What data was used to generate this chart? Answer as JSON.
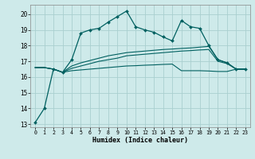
{
  "xlabel": "Humidex (Indice chaleur)",
  "background_color": "#ceeaea",
  "grid_color": "#aacfcf",
  "line_color": "#006060",
  "xlim": [
    -0.5,
    23.5
  ],
  "ylim": [
    12.8,
    20.6
  ],
  "yticks": [
    13,
    14,
    15,
    16,
    17,
    18,
    19,
    20
  ],
  "xticks": [
    0,
    1,
    2,
    3,
    4,
    5,
    6,
    7,
    8,
    9,
    10,
    11,
    12,
    13,
    14,
    15,
    16,
    17,
    18,
    19,
    20,
    21,
    22,
    23
  ],
  "line1_x": [
    0,
    1,
    2,
    3,
    4,
    5,
    6,
    7,
    8,
    9,
    10,
    11,
    12,
    13,
    14,
    15,
    16,
    17,
    18,
    19,
    20,
    21,
    22,
    23
  ],
  "line1_y": [
    13.1,
    14.0,
    16.5,
    16.3,
    17.1,
    18.8,
    19.0,
    19.1,
    19.5,
    19.85,
    20.2,
    19.2,
    19.0,
    18.85,
    18.55,
    18.3,
    19.6,
    19.2,
    19.1,
    18.0,
    17.1,
    16.9,
    16.5,
    16.5
  ],
  "line2_x": [
    0,
    1,
    2,
    3,
    4,
    5,
    6,
    7,
    8,
    9,
    10,
    11,
    12,
    13,
    14,
    15,
    16,
    17,
    18,
    19,
    20,
    21,
    22,
    23
  ],
  "line2_y": [
    16.6,
    16.6,
    16.5,
    16.3,
    16.4,
    16.45,
    16.5,
    16.55,
    16.6,
    16.65,
    16.7,
    16.72,
    16.75,
    16.77,
    16.8,
    16.82,
    16.4,
    16.4,
    16.4,
    16.38,
    16.35,
    16.35,
    16.5,
    16.5
  ],
  "line3_x": [
    0,
    1,
    2,
    3,
    4,
    5,
    6,
    7,
    8,
    9,
    10,
    11,
    12,
    13,
    14,
    15,
    16,
    17,
    18,
    19,
    20,
    21,
    22,
    23
  ],
  "line3_y": [
    16.6,
    16.6,
    16.5,
    16.3,
    16.7,
    16.9,
    17.05,
    17.2,
    17.35,
    17.45,
    17.55,
    17.6,
    17.65,
    17.7,
    17.75,
    17.78,
    17.82,
    17.85,
    17.9,
    17.95,
    17.1,
    16.9,
    16.5,
    16.5
  ],
  "line4_x": [
    0,
    1,
    2,
    3,
    4,
    5,
    6,
    7,
    8,
    9,
    10,
    11,
    12,
    13,
    14,
    15,
    16,
    17,
    18,
    19,
    20,
    21,
    22,
    23
  ],
  "line4_y": [
    16.6,
    16.6,
    16.5,
    16.3,
    16.55,
    16.7,
    16.85,
    17.0,
    17.1,
    17.2,
    17.35,
    17.4,
    17.45,
    17.5,
    17.55,
    17.6,
    17.65,
    17.68,
    17.72,
    17.75,
    17.0,
    16.85,
    16.5,
    16.5
  ]
}
